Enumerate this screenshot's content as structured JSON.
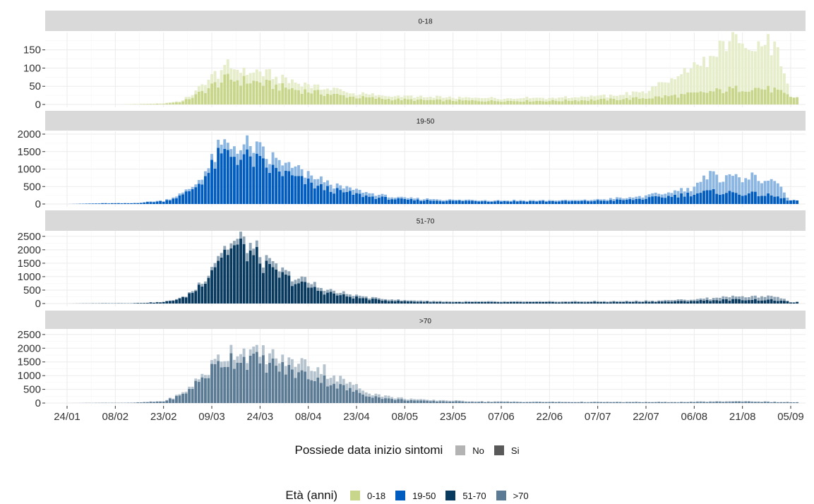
{
  "chart_data": {
    "type": "bar",
    "stacked": true,
    "x_axis": {
      "tick_labels": [
        "24/01",
        "08/02",
        "23/02",
        "09/03",
        "24/03",
        "08/04",
        "23/04",
        "08/05",
        "23/05",
        "07/06",
        "22/06",
        "07/07",
        "22/07",
        "06/08",
        "21/08",
        "05/09"
      ],
      "start_date": "2020-01-24",
      "end_date": "2020-09-07"
    },
    "grid": true,
    "facets": [
      {
        "strip_label": "0-18",
        "color": "#c8d68c",
        "ylim": [
          0,
          190
        ],
        "yticks": [
          0,
          50,
          100,
          150
        ],
        "si_keypoints": [
          [
            0,
            0
          ],
          [
            16,
            0
          ],
          [
            30,
            2
          ],
          [
            36,
            8
          ],
          [
            40,
            25
          ],
          [
            46,
            55
          ],
          [
            50,
            70
          ],
          [
            55,
            65
          ],
          [
            60,
            60
          ],
          [
            65,
            50
          ],
          [
            72,
            40
          ],
          [
            80,
            30
          ],
          [
            90,
            20
          ],
          [
            100,
            15
          ],
          [
            110,
            12
          ],
          [
            130,
            10
          ],
          [
            150,
            10
          ],
          [
            170,
            14
          ],
          [
            180,
            18
          ],
          [
            190,
            25
          ],
          [
            196,
            30
          ],
          [
            200,
            35
          ],
          [
            205,
            40
          ],
          [
            210,
            45
          ],
          [
            215,
            45
          ],
          [
            220,
            40
          ],
          [
            225,
            20
          ]
        ],
        "no_keypoints": [
          [
            0,
            0
          ],
          [
            16,
            0
          ],
          [
            30,
            1
          ],
          [
            36,
            3
          ],
          [
            40,
            10
          ],
          [
            46,
            25
          ],
          [
            50,
            35
          ],
          [
            55,
            30
          ],
          [
            60,
            25
          ],
          [
            65,
            25
          ],
          [
            72,
            20
          ],
          [
            80,
            15
          ],
          [
            90,
            10
          ],
          [
            100,
            8
          ],
          [
            110,
            8
          ],
          [
            130,
            8
          ],
          [
            150,
            8
          ],
          [
            170,
            10
          ],
          [
            180,
            18
          ],
          [
            190,
            60
          ],
          [
            196,
            70
          ],
          [
            200,
            90
          ],
          [
            205,
            130
          ],
          [
            210,
            120
          ],
          [
            215,
            110
          ],
          [
            220,
            120
          ],
          [
            225,
            0
          ]
        ]
      },
      {
        "strip_label": "19-50",
        "color": "#005cbf",
        "ylim": [
          0,
          2000
        ],
        "yticks": [
          0,
          500,
          1000,
          1500,
          2000
        ],
        "si_keypoints": [
          [
            0,
            0
          ],
          [
            12,
            20
          ],
          [
            20,
            20
          ],
          [
            30,
            80
          ],
          [
            36,
            250
          ],
          [
            40,
            500
          ],
          [
            44,
            900
          ],
          [
            47,
            1300
          ],
          [
            50,
            1450
          ],
          [
            54,
            1350
          ],
          [
            58,
            1250
          ],
          [
            63,
            1000
          ],
          [
            67,
            900
          ],
          [
            72,
            700
          ],
          [
            78,
            500
          ],
          [
            85,
            350
          ],
          [
            95,
            200
          ],
          [
            105,
            120
          ],
          [
            120,
            90
          ],
          [
            140,
            80
          ],
          [
            160,
            80
          ],
          [
            175,
            120
          ],
          [
            185,
            200
          ],
          [
            195,
            300
          ],
          [
            200,
            350
          ],
          [
            205,
            330
          ],
          [
            210,
            300
          ],
          [
            215,
            280
          ],
          [
            220,
            220
          ],
          [
            225,
            100
          ]
        ],
        "no_keypoints": [
          [
            0,
            0
          ],
          [
            12,
            5
          ],
          [
            20,
            5
          ],
          [
            30,
            20
          ],
          [
            36,
            50
          ],
          [
            40,
            80
          ],
          [
            44,
            150
          ],
          [
            47,
            200
          ],
          [
            50,
            250
          ],
          [
            54,
            300
          ],
          [
            58,
            350
          ],
          [
            63,
            300
          ],
          [
            67,
            250
          ],
          [
            72,
            250
          ],
          [
            78,
            200
          ],
          [
            85,
            150
          ],
          [
            95,
            80
          ],
          [
            105,
            50
          ],
          [
            120,
            30
          ],
          [
            140,
            25
          ],
          [
            160,
            30
          ],
          [
            175,
            60
          ],
          [
            185,
            100
          ],
          [
            195,
            200
          ],
          [
            200,
            450
          ],
          [
            205,
            450
          ],
          [
            210,
            500
          ],
          [
            215,
            450
          ],
          [
            220,
            450
          ],
          [
            225,
            0
          ]
        ]
      },
      {
        "strip_label": "51-70",
        "color": "#08395e",
        "ylim": [
          0,
          2600
        ],
        "yticks": [
          0,
          500,
          1000,
          1500,
          2000,
          2500
        ],
        "si_keypoints": [
          [
            0,
            0
          ],
          [
            12,
            10
          ],
          [
            20,
            10
          ],
          [
            30,
            50
          ],
          [
            36,
            200
          ],
          [
            40,
            500
          ],
          [
            44,
            1100
          ],
          [
            47,
            1700
          ],
          [
            50,
            2000
          ],
          [
            53,
            2100
          ],
          [
            56,
            1950
          ],
          [
            60,
            1600
          ],
          [
            63,
            1200
          ],
          [
            67,
            1000
          ],
          [
            72,
            750
          ],
          [
            78,
            500
          ],
          [
            85,
            300
          ],
          [
            95,
            150
          ],
          [
            105,
            80
          ],
          [
            120,
            50
          ],
          [
            150,
            50
          ],
          [
            175,
            60
          ],
          [
            190,
            80
          ],
          [
            200,
            120
          ],
          [
            210,
            150
          ],
          [
            220,
            130
          ],
          [
            225,
            50
          ]
        ],
        "no_keypoints": [
          [
            0,
            0
          ],
          [
            12,
            2
          ],
          [
            20,
            2
          ],
          [
            30,
            10
          ],
          [
            36,
            30
          ],
          [
            40,
            60
          ],
          [
            44,
            100
          ],
          [
            47,
            150
          ],
          [
            50,
            200
          ],
          [
            53,
            200
          ],
          [
            56,
            250
          ],
          [
            60,
            250
          ],
          [
            63,
            200
          ],
          [
            67,
            200
          ],
          [
            72,
            150
          ],
          [
            78,
            150
          ],
          [
            85,
            100
          ],
          [
            95,
            60
          ],
          [
            105,
            40
          ],
          [
            120,
            25
          ],
          [
            150,
            25
          ],
          [
            175,
            30
          ],
          [
            190,
            50
          ],
          [
            200,
            80
          ],
          [
            210,
            120
          ],
          [
            220,
            150
          ],
          [
            225,
            0
          ]
        ]
      },
      {
        "strip_label": ">70",
        "color": "#5b7a93",
        "ylim": [
          0,
          2600
        ],
        "yticks": [
          0,
          500,
          1000,
          1500,
          2000,
          2500
        ],
        "si_keypoints": [
          [
            0,
            0
          ],
          [
            12,
            10
          ],
          [
            20,
            10
          ],
          [
            30,
            60
          ],
          [
            36,
            300
          ],
          [
            40,
            700
          ],
          [
            44,
            1100
          ],
          [
            47,
            1400
          ],
          [
            50,
            1600
          ],
          [
            54,
            1650
          ],
          [
            58,
            1550
          ],
          [
            62,
            1450
          ],
          [
            66,
            1300
          ],
          [
            70,
            1150
          ],
          [
            75,
            1000
          ],
          [
            80,
            850
          ],
          [
            85,
            600
          ],
          [
            90,
            400
          ],
          [
            95,
            250
          ],
          [
            100,
            150
          ],
          [
            110,
            80
          ],
          [
            130,
            40
          ],
          [
            160,
            30
          ],
          [
            190,
            30
          ],
          [
            210,
            50
          ],
          [
            225,
            30
          ]
        ],
        "no_keypoints": [
          [
            0,
            0
          ],
          [
            12,
            2
          ],
          [
            20,
            2
          ],
          [
            30,
            15
          ],
          [
            36,
            50
          ],
          [
            40,
            100
          ],
          [
            44,
            150
          ],
          [
            47,
            200
          ],
          [
            50,
            250
          ],
          [
            54,
            300
          ],
          [
            58,
            300
          ],
          [
            62,
            300
          ],
          [
            66,
            300
          ],
          [
            70,
            350
          ],
          [
            75,
            400
          ],
          [
            80,
            350
          ],
          [
            85,
            250
          ],
          [
            90,
            200
          ],
          [
            95,
            120
          ],
          [
            100,
            80
          ],
          [
            110,
            40
          ],
          [
            130,
            20
          ],
          [
            160,
            15
          ],
          [
            190,
            15
          ],
          [
            210,
            25
          ],
          [
            225,
            0
          ]
        ]
      }
    ]
  },
  "legend_sintomi": {
    "title": "Possiede data inizio sintomi",
    "items": [
      {
        "label": "No",
        "color": "#b3b3b3"
      },
      {
        "label": "Si",
        "color": "#595959"
      }
    ]
  },
  "legend_eta": {
    "title": "Età (anni)",
    "items": [
      {
        "label": "0-18",
        "color": "#c8d68c"
      },
      {
        "label": "19-50",
        "color": "#005cbf"
      },
      {
        "label": "51-70",
        "color": "#08395e"
      },
      {
        "label": ">70",
        "color": "#5b7a93"
      }
    ]
  }
}
